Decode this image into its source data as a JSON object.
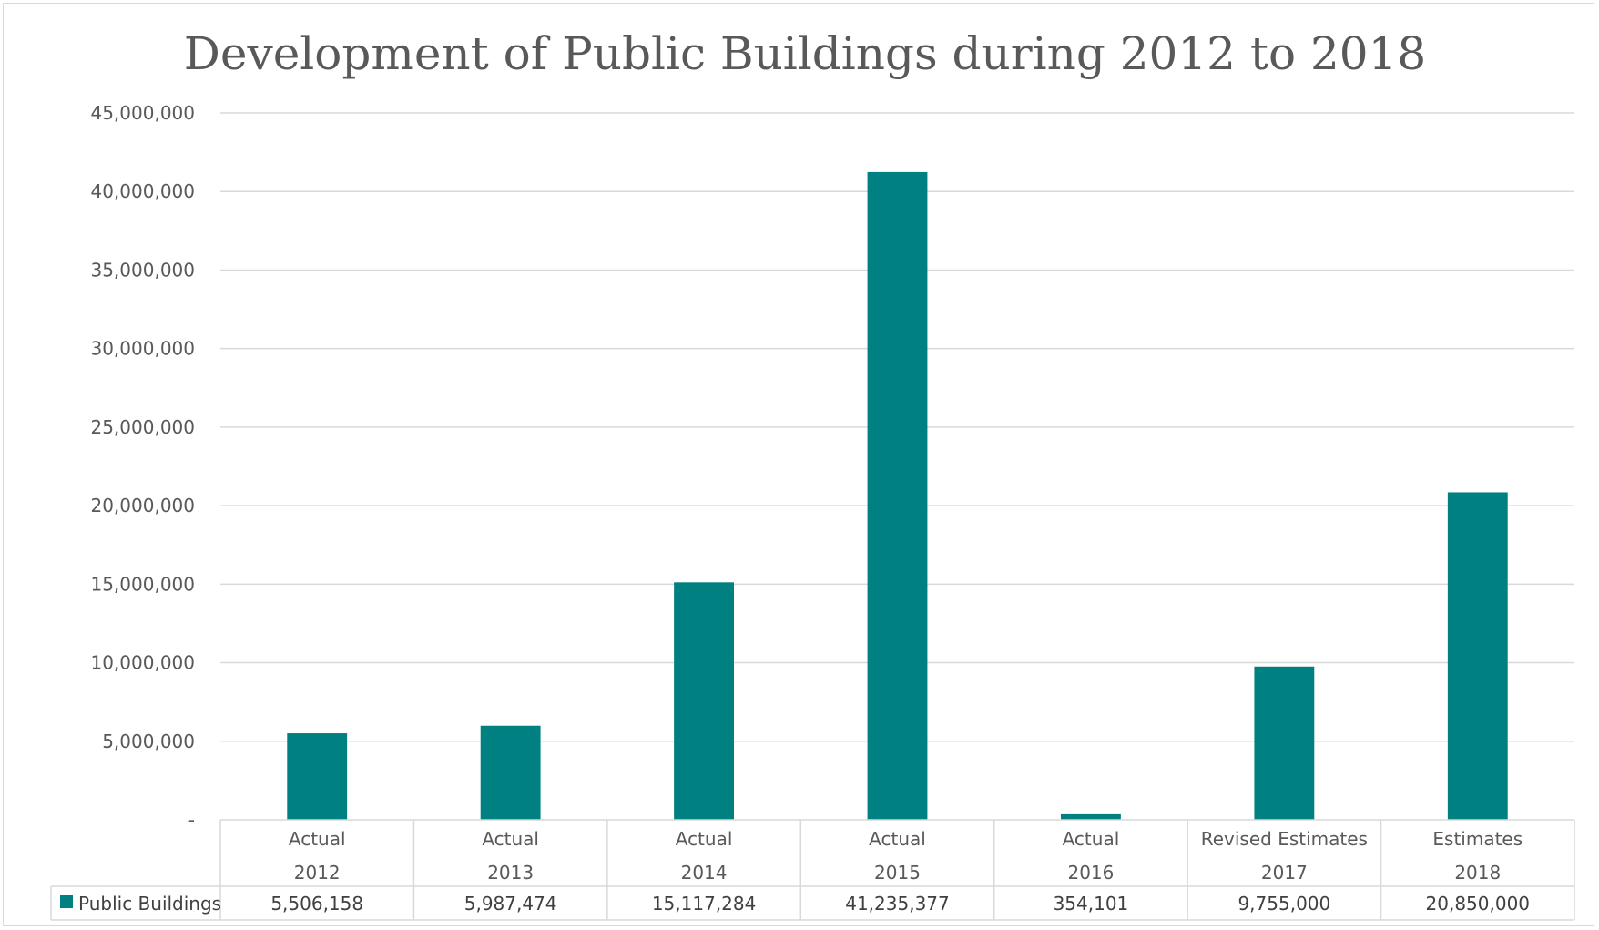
{
  "chart_data": {
    "type": "bar",
    "title": "Development of Public Buildings during 2012 to 2018",
    "categories": [
      [
        "Actual",
        "2012"
      ],
      [
        "Actual",
        "2013"
      ],
      [
        "Actual",
        "2014"
      ],
      [
        "Actual",
        "2015"
      ],
      [
        "Actual",
        "2016"
      ],
      [
        "Revised Estimates",
        "2017"
      ],
      [
        "Estimates",
        "2018"
      ]
    ],
    "series": [
      {
        "name": "Public Buildings",
        "color": "#008080",
        "values": [
          5506158,
          5987474,
          15117284,
          41235377,
          354101,
          9755000,
          20850000
        ],
        "value_labels": [
          "5,506,158",
          "5,987,474",
          "15,117,284",
          "41,235,377",
          "354,101",
          "9,755,000",
          "20,850,000"
        ]
      }
    ],
    "ylim": [
      0,
      45000000
    ],
    "yticks": [
      0,
      5000000,
      10000000,
      15000000,
      20000000,
      25000000,
      30000000,
      35000000,
      40000000,
      45000000
    ],
    "ytick_labels": [
      "-",
      "5,000,000",
      "10,000,000",
      "15,000,000",
      "20,000,000",
      "25,000,000",
      "30,000,000",
      "35,000,000",
      "40,000,000",
      "45,000,000"
    ],
    "xlabel": "",
    "ylabel": "",
    "grid": true,
    "legend": "data table",
    "data_table": true
  }
}
